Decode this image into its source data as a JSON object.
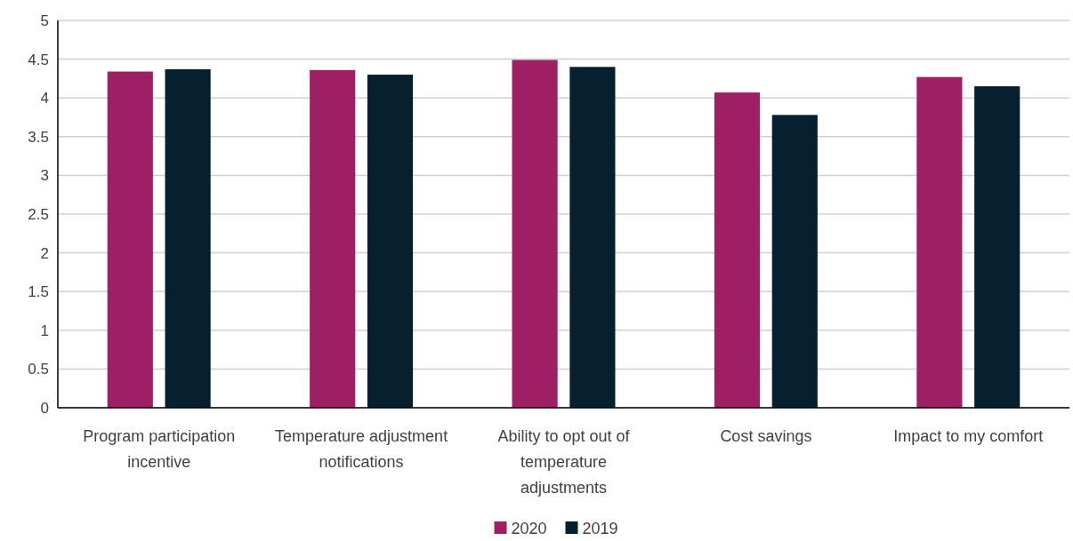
{
  "chart_data": {
    "type": "bar",
    "categories": [
      "Program participation incentive",
      "Temperature adjustment notifications",
      "Ability to opt out of temperature adjustments",
      "Cost savings",
      "Impact to my comfort"
    ],
    "series": [
      {
        "name": "2020",
        "color": "#9e1f63",
        "values": [
          4.34,
          4.36,
          4.49,
          4.07,
          4.27
        ]
      },
      {
        "name": "2019",
        "color": "#07202f",
        "values": [
          4.37,
          4.3,
          4.4,
          3.78,
          4.15
        ]
      }
    ],
    "ylim": [
      0,
      5
    ],
    "yticks": [
      0,
      0.5,
      1,
      1.5,
      2,
      2.5,
      3,
      3.5,
      4,
      4.5,
      5
    ],
    "grid": "y",
    "legend": "bottom"
  }
}
